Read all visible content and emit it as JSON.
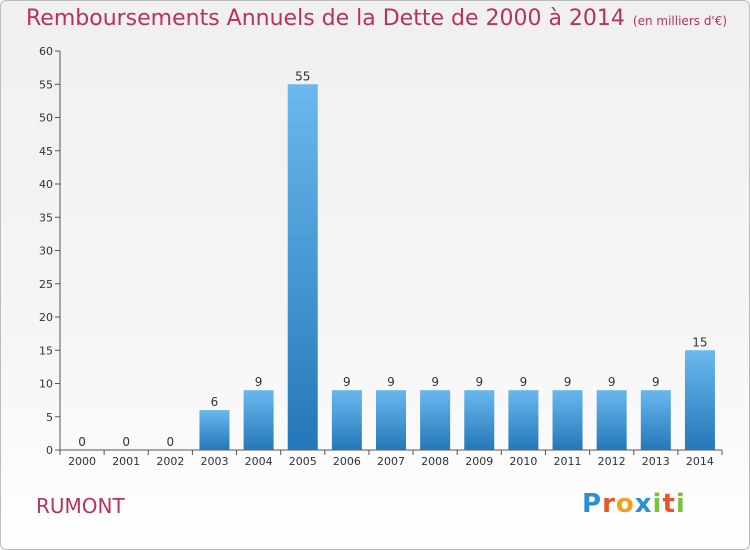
{
  "title": "Remboursements Annuels de la Dette de 2000 à 2014",
  "unit": "(en milliers d'€)",
  "commune": "RUMONT",
  "brand": {
    "letters": [
      "P",
      "r",
      "o",
      "x",
      "i",
      "t",
      "i"
    ],
    "colors": [
      "#2b8fd6",
      "#e8542b",
      "#f0a21b",
      "#2b8fd6",
      "#7cc242",
      "#e8542b",
      "#7cc242"
    ]
  },
  "colors": {
    "title": "#b9315e",
    "bar_top": "#6ab8ee",
    "bar_bottom": "#2477b8",
    "axis": "#555555",
    "grid": "#dddddd"
  },
  "chart_data": {
    "type": "bar",
    "categories": [
      "2000",
      "2001",
      "2002",
      "2003",
      "2004",
      "2005",
      "2006",
      "2007",
      "2008",
      "2009",
      "2010",
      "2011",
      "2012",
      "2013",
      "2014"
    ],
    "values": [
      0,
      0,
      0,
      6,
      9,
      55,
      9,
      9,
      9,
      9,
      9,
      9,
      9,
      9,
      15
    ],
    "ylim": [
      0,
      60
    ],
    "yticks": [
      0,
      5,
      10,
      15,
      20,
      25,
      30,
      35,
      40,
      45,
      50,
      55,
      60
    ],
    "title": "Remboursements Annuels de la Dette de 2000 à 2014",
    "xlabel": "",
    "ylabel": "",
    "grid": false,
    "data_labels": true
  }
}
